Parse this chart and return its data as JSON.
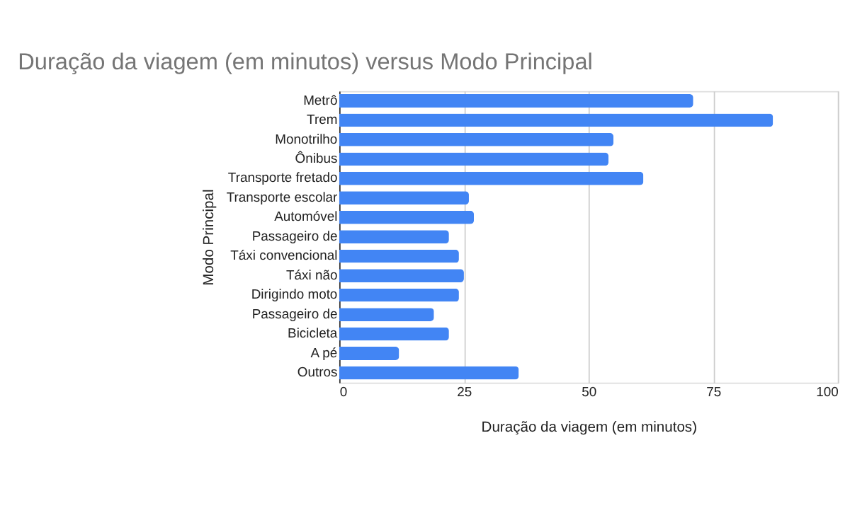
{
  "chart_data": {
    "type": "bar",
    "orientation": "horizontal",
    "title": "Duração da viagem (em minutos) versus Modo Principal",
    "xlabel": "Duração da viagem (em minutos)",
    "ylabel": "Modo Principal",
    "categories": [
      "Metrô",
      "Trem",
      "Monotrilho",
      "Ônibus",
      "Transporte fretado",
      "Transporte escolar",
      "Automóvel",
      "Passageiro de",
      "Táxi convencional",
      "Táxi não",
      "Dirigindo moto",
      "Passageiro de",
      "Bicicleta",
      "A pé",
      "Outros"
    ],
    "values": [
      71,
      87,
      55,
      54,
      61,
      26,
      27,
      22,
      24,
      25,
      24,
      19,
      22,
      12,
      36
    ],
    "color": "#4285f4",
    "xlim": [
      0,
      100
    ],
    "xticks": [
      0,
      25,
      50,
      75,
      100
    ],
    "grid": "x"
  }
}
